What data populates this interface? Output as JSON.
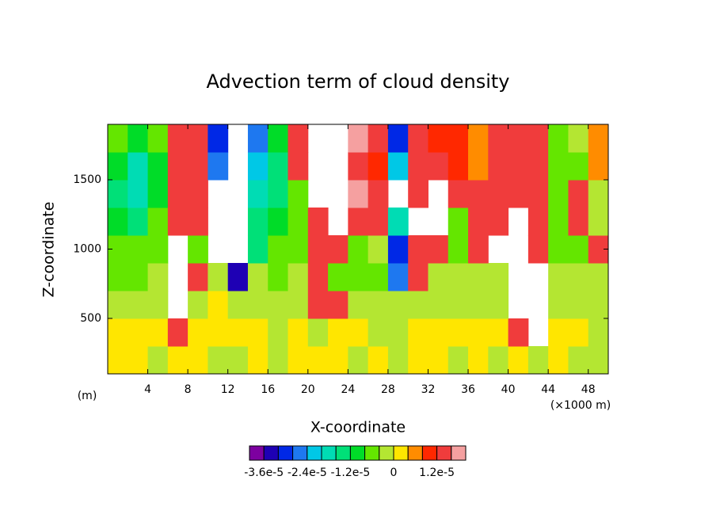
{
  "chart_data": {
    "type": "contour",
    "title": "Advection term of cloud density",
    "xlabel": "X-coordinate",
    "ylabel": "Z-coordinate",
    "x_unit": "(×1000 m)",
    "y_unit": "(m)",
    "xlim": [
      0,
      50
    ],
    "ylim": [
      100,
      1900
    ],
    "xticks": [
      4,
      8,
      12,
      16,
      20,
      24,
      28,
      32,
      36,
      40,
      44,
      48
    ],
    "yticks": [
      500,
      1000,
      1500
    ],
    "x": [
      1,
      3,
      5,
      7,
      9,
      11,
      13,
      15,
      17,
      19,
      21,
      23,
      25,
      27,
      29,
      31,
      33,
      35,
      37,
      39,
      41,
      43,
      45,
      47,
      49
    ],
    "y": [
      200,
      400,
      600,
      800,
      1000,
      1200,
      1400,
      1600,
      1800
    ],
    "z": [
      [
        2e-06,
        2e-06,
        -2e-06,
        2e-06,
        2e-06,
        -2e-06,
        -2e-06,
        2e-06,
        -2e-06,
        2e-06,
        2e-06,
        2e-06,
        -2e-06,
        2e-06,
        -2e-06,
        2e-06,
        2e-06,
        -2e-06,
        2e-06,
        -2e-06,
        2e-06,
        -2e-06,
        2e-06,
        -2e-06,
        -2e-06
      ],
      [
        2e-06,
        2e-06,
        2e-06,
        1.4e-05,
        2e-06,
        2e-06,
        2e-06,
        2e-06,
        -2e-06,
        2e-06,
        -2e-06,
        2e-06,
        2e-06,
        -2e-06,
        -2e-06,
        2e-06,
        2e-06,
        2e-06,
        2e-06,
        2e-06,
        1.4e-05,
        null,
        2e-06,
        2e-06,
        -2e-06
      ],
      [
        -2e-06,
        -2e-06,
        -2e-06,
        null,
        -2e-06,
        2e-06,
        -2e-06,
        -2e-06,
        -2e-06,
        -2e-06,
        1.4e-05,
        1.4e-05,
        -2e-06,
        -2e-06,
        -2e-06,
        -2e-06,
        -2e-06,
        -2e-06,
        -2e-06,
        -2e-06,
        null,
        null,
        -2e-06,
        -2e-06,
        -2e-06
      ],
      [
        -6e-06,
        -6e-06,
        -2e-06,
        null,
        1.4e-05,
        -2e-06,
        -3.4e-05,
        -2e-06,
        -6e-06,
        -2e-06,
        1.4e-05,
        -6e-06,
        -6e-06,
        -6e-06,
        -2.6e-05,
        1.4e-05,
        -2e-06,
        -2e-06,
        -2e-06,
        -2e-06,
        null,
        null,
        -2e-06,
        -2e-06,
        -2e-06
      ],
      [
        -6e-06,
        -6e-06,
        -6e-06,
        null,
        -6e-06,
        null,
        null,
        -1.4e-05,
        -6e-06,
        -6e-06,
        1.4e-05,
        1.4e-05,
        -6e-06,
        -2e-06,
        -3e-05,
        1.4e-05,
        1.4e-05,
        -6e-06,
        1.4e-05,
        null,
        null,
        1.4e-05,
        -6e-06,
        -6e-06,
        1.4e-05
      ],
      [
        -1e-05,
        -1.4e-05,
        -6e-06,
        1.4e-05,
        1.4e-05,
        null,
        null,
        -1.4e-05,
        -1e-05,
        -6e-06,
        1.4e-05,
        null,
        1.4e-05,
        1.4e-05,
        -1.8e-05,
        null,
        null,
        -6e-06,
        1.4e-05,
        1.4e-05,
        null,
        1.4e-05,
        -6e-06,
        1.4e-05,
        -2e-06
      ],
      [
        -1.4e-05,
        -1.8e-05,
        -1e-05,
        1.4e-05,
        1.4e-05,
        null,
        null,
        -1.8e-05,
        -1.4e-05,
        -6e-06,
        null,
        null,
        1.8e-05,
        1.4e-05,
        null,
        1.4e-05,
        null,
        1.4e-05,
        1.4e-05,
        1.4e-05,
        1.4e-05,
        1.4e-05,
        -6e-06,
        1.4e-05,
        -2e-06
      ],
      [
        -1e-05,
        -1.8e-05,
        -1e-05,
        1.4e-05,
        1.4e-05,
        -2.6e-05,
        null,
        -2.2e-05,
        -1.4e-05,
        1.4e-05,
        null,
        null,
        1.4e-05,
        1e-05,
        -2.2e-05,
        1.4e-05,
        1.4e-05,
        1e-05,
        6e-06,
        1.4e-05,
        1.4e-05,
        1.4e-05,
        -6e-06,
        -6e-06,
        6e-06
      ],
      [
        -6e-06,
        -1e-05,
        -6e-06,
        1.4e-05,
        1.4e-05,
        -3e-05,
        null,
        -2.6e-05,
        -1e-05,
        1.4e-05,
        null,
        null,
        1.8e-05,
        1.4e-05,
        -3e-05,
        1.4e-05,
        1e-05,
        1e-05,
        6e-06,
        1.4e-05,
        1.4e-05,
        1.4e-05,
        -6e-06,
        -2e-06,
        6e-06
      ]
    ],
    "levels": [
      -3.6e-05,
      -3.2e-05,
      -2.8e-05,
      -2.4e-05,
      -2e-05,
      -1.6e-05,
      -1.2e-05,
      -8e-06,
      -4e-06,
      0,
      4e-06,
      8e-06,
      1.2e-05,
      1.6e-05
    ],
    "colors": [
      "#7d00a0",
      "#1e00b4",
      "#0028e6",
      "#1e78f0",
      "#00c8e6",
      "#00dcb4",
      "#00e078",
      "#00dc28",
      "#64e600",
      "#b4e632",
      "#ffe600",
      "#ff8c00",
      "#ff2800",
      "#f03c3c",
      "#f5a0a0"
    ],
    "colorbar_ticks": [
      {
        "value": -3.6e-05,
        "label": "-3.6e-5"
      },
      {
        "value": -2.4e-05,
        "label": "-2.4e-5"
      },
      {
        "value": -1.2e-05,
        "label": "-1.2e-5"
      },
      0,
      {
        "value": 1.2e-05,
        "label": "1.2e-5"
      }
    ]
  }
}
